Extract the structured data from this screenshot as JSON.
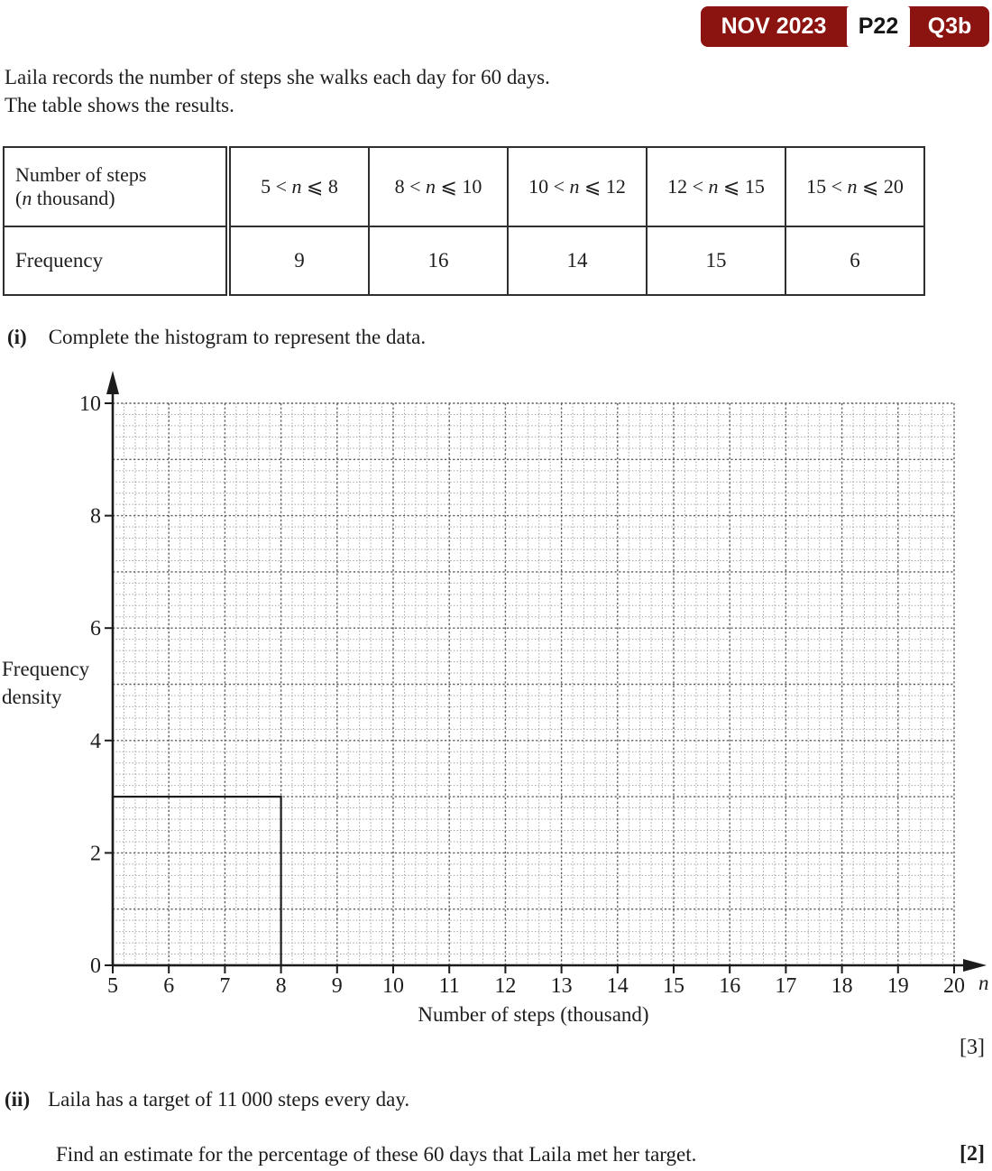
{
  "badge": {
    "session": "NOV 2023",
    "paper": "P22",
    "question": "Q3b",
    "bg_color": "#8b1310",
    "text_color": "#ffffff"
  },
  "intro": {
    "line1": "Laila records the number of steps she walks each day for 60 days.",
    "line2": "The table shows the results."
  },
  "table": {
    "stub_line1": "Number of steps",
    "stub_sub": {
      "pre": "(",
      "var": "n",
      "post": " thousand)"
    },
    "row2_label": "Frequency",
    "classes": [
      {
        "pre": "5 < ",
        "var": "n",
        "post": " ⩽ 8"
      },
      {
        "pre": "8 < ",
        "var": "n",
        "post": " ⩽ 10"
      },
      {
        "pre": "10 < ",
        "var": "n",
        "post": " ⩽ 12"
      },
      {
        "pre": "12 < ",
        "var": "n",
        "post": " ⩽ 15"
      },
      {
        "pre": "15 < ",
        "var": "n",
        "post": " ⩽ 20"
      }
    ],
    "frequencies": [
      "9",
      "16",
      "14",
      "15",
      "6"
    ]
  },
  "part_i": {
    "label": "(i)",
    "text": "Complete the histogram to represent the data.",
    "marks": "[3]"
  },
  "part_ii": {
    "label": "(ii)",
    "text1": "Laila has a target of 11 000 steps every day.",
    "text2": "Find an estimate for the percentage of these 60 days that Laila met her target.",
    "marks": "[2]"
  },
  "chart_data": {
    "type": "histogram",
    "xlabel": "Number of steps (thousand)",
    "ylabel_lines": [
      "Frequency",
      "density"
    ],
    "x_var": "n",
    "xlim": [
      5,
      20
    ],
    "ylim": [
      0,
      10
    ],
    "x_ticks": [
      5,
      6,
      7,
      8,
      9,
      10,
      11,
      12,
      13,
      14,
      15,
      16,
      17,
      18,
      19,
      20
    ],
    "y_ticks": [
      0,
      2,
      4,
      6,
      8,
      10
    ],
    "minor_divisions_per_unit": 5,
    "grid": "dotted",
    "bars_drawn": [
      {
        "range": [
          5,
          8
        ],
        "frequency_density": 3
      }
    ]
  }
}
